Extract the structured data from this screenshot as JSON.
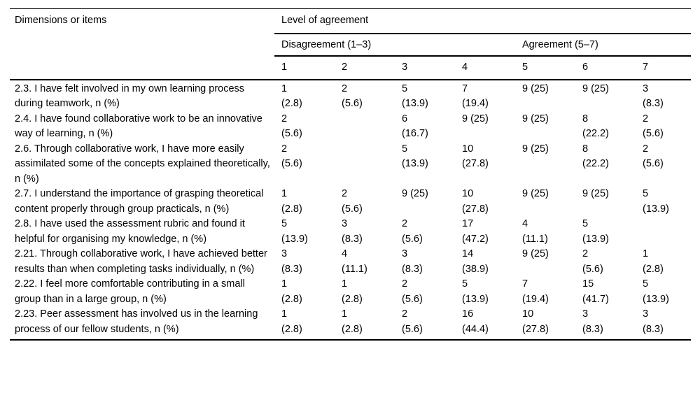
{
  "page": {
    "background": "#ffffff",
    "text_color": "#000000",
    "rule_color": "#000000"
  },
  "table": {
    "left_header": "Dimensions or items",
    "span_header": "Level of agreement",
    "groups": [
      {
        "label": "Disagreement (1–3)"
      },
      {
        "label": "Agreement (5–7)"
      }
    ],
    "scale": [
      "1",
      "2",
      "3",
      "4",
      "5",
      "6",
      "7"
    ],
    "rows": [
      {
        "item": "2.3. I have felt involved in my own learning process during teamwork, n (%)",
        "values": [
          "1\n(2.8)",
          "2\n(5.6)",
          "5\n(13.9)",
          "7\n(19.4)",
          "9 (25)",
          "9 (25)",
          "3\n(8.3)"
        ]
      },
      {
        "item": "2.4. I have found collaborative work to be an innovative way of learning, n (%)",
        "values": [
          "2\n(5.6)",
          "",
          "6\n(16.7)",
          "9 (25)",
          "9 (25)",
          "8\n(22.2)",
          "2\n(5.6)"
        ]
      },
      {
        "item": "2.6. Through collaborative work, I have more easily assimilated some of the concepts explained theoretically, n (%)",
        "values": [
          "2\n(5.6)",
          "",
          "5\n(13.9)",
          "10\n(27.8)",
          "9 (25)",
          "8\n(22.2)",
          "2\n(5.6)"
        ]
      },
      {
        "item": "2.7. I understand the importance of grasping theoretical content properly through group practicals, n (%)",
        "values": [
          "1\n(2.8)",
          "2\n(5.6)",
          "9 (25)",
          "10\n(27.8)",
          "9 (25)",
          "9 (25)",
          "5\n(13.9)"
        ]
      },
      {
        "item": "2.8. I have used the assessment rubric and found it helpful for organising my knowledge, n (%)",
        "values": [
          "5\n(13.9)",
          "3\n(8.3)",
          "2\n(5.6)",
          "17\n(47.2)",
          "4\n(11.1)",
          "5\n(13.9)",
          ""
        ]
      },
      {
        "item": "2.21. Through collaborative work, I have achieved better results than when completing tasks individually, n (%)",
        "values": [
          "3\n(8.3)",
          "4\n(11.1)",
          "3\n(8.3)",
          "14\n(38.9)",
          "9 (25)",
          "2\n(5.6)",
          "1\n(2.8)"
        ]
      },
      {
        "item": "2.22. I feel more comfortable contributing in a small group than in a large group, n (%)",
        "values": [
          "1\n(2.8)",
          "1\n(2.8)",
          "2\n(5.6)",
          "5\n(13.9)",
          "7\n(19.4)",
          "15\n(41.7)",
          "5\n(13.9)"
        ]
      },
      {
        "item": "2.23. Peer assessment has involved us in the learning process of our fellow students, n (%)",
        "values": [
          "1\n(2.8)",
          "1\n(2.8)",
          "2\n(5.6)",
          "16\n(44.4)",
          "10\n(27.8)",
          "3\n(8.3)",
          "3\n(8.3)"
        ]
      }
    ]
  },
  "chart_data": {
    "type": "table",
    "title": "Level of agreement",
    "column_groups": [
      {
        "label": "Disagreement (1–3)",
        "columns": [
          "1",
          "2",
          "3"
        ]
      },
      {
        "label": "Agreement (5–7)",
        "columns": [
          "5",
          "6",
          "7"
        ]
      }
    ],
    "columns": [
      "1",
      "2",
      "3",
      "4",
      "5",
      "6",
      "7"
    ],
    "rows": [
      {
        "item": "2.3. I have felt involved in my own learning process during teamwork, n (%)",
        "n": [
          1,
          2,
          5,
          7,
          9,
          9,
          3
        ],
        "pct": [
          2.8,
          5.6,
          13.9,
          19.4,
          25,
          25,
          8.3
        ]
      },
      {
        "item": "2.4. I have found collaborative work to be an innovative way of learning, n (%)",
        "n": [
          2,
          null,
          6,
          9,
          9,
          8,
          2
        ],
        "pct": [
          5.6,
          null,
          16.7,
          25,
          25,
          22.2,
          5.6
        ]
      },
      {
        "item": "2.6. Through collaborative work, I have more easily assimilated some of the concepts explained theoretically, n (%)",
        "n": [
          2,
          null,
          5,
          10,
          9,
          8,
          2
        ],
        "pct": [
          5.6,
          null,
          13.9,
          27.8,
          25,
          22.2,
          5.6
        ]
      },
      {
        "item": "2.7. I understand the importance of grasping theoretical content properly through group practicals, n (%)",
        "n": [
          1,
          2,
          9,
          10,
          9,
          9,
          5
        ],
        "pct": [
          2.8,
          5.6,
          25,
          27.8,
          25,
          25,
          13.9
        ]
      },
      {
        "item": "2.8. I have used the assessment rubric and found it helpful for organising my knowledge, n (%)",
        "n": [
          5,
          3,
          2,
          17,
          4,
          5,
          null
        ],
        "pct": [
          13.9,
          8.3,
          5.6,
          47.2,
          11.1,
          13.9,
          null
        ]
      },
      {
        "item": "2.21. Through collaborative work, I have achieved better results than when completing tasks individually, n (%)",
        "n": [
          3,
          4,
          3,
          14,
          9,
          2,
          1
        ],
        "pct": [
          8.3,
          11.1,
          8.3,
          38.9,
          25,
          5.6,
          2.8
        ]
      },
      {
        "item": "2.22. I feel more comfortable contributing in a small group than in a large group, n (%)",
        "n": [
          1,
          1,
          2,
          5,
          7,
          15,
          5
        ],
        "pct": [
          2.8,
          2.8,
          5.6,
          13.9,
          19.4,
          41.7,
          13.9
        ]
      },
      {
        "item": "2.23. Peer assessment has involved us in the learning process of our fellow students, n (%)",
        "n": [
          1,
          1,
          2,
          16,
          10,
          3,
          3
        ],
        "pct": [
          2.8,
          2.8,
          5.6,
          44.4,
          27.8,
          8.3,
          8.3
        ]
      }
    ]
  }
}
